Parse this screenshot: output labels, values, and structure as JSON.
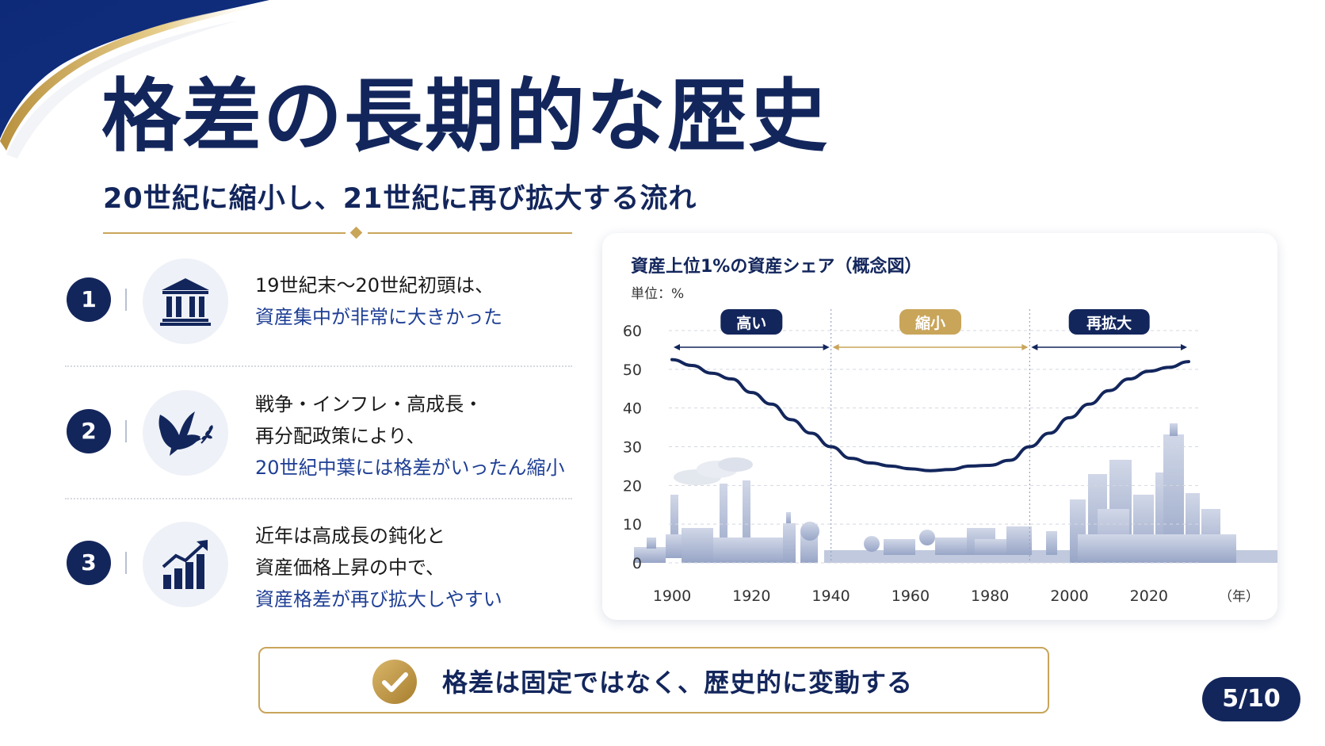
{
  "title": "格差の長期的な歴史",
  "subtitle": "20世紀に縮小し、21世紀に再び拡大する流れ",
  "points": [
    {
      "number": "1",
      "icon": "bank-icon",
      "line1": "19世紀末～20世紀初頭は、",
      "line2": "資産集中が非常に大きかった"
    },
    {
      "number": "2",
      "icon": "dove-icon",
      "line1": "戦争・インフレ・高成長・",
      "line2": "再分配政策により、",
      "line3": "20世紀中葉には格差がいったん縮小"
    },
    {
      "number": "3",
      "icon": "growth-chart-icon",
      "line1": "近年は高成長の鈍化と",
      "line2": "資産価格上昇の中で、",
      "line3": "資産格差が再び拡大しやすい"
    }
  ],
  "summary": {
    "text": "格差は固定ではなく、歴史的に変動する",
    "icon": "check-badge-icon"
  },
  "page_indicator": "5/10",
  "colors": {
    "navy": "#13265c",
    "gold": "#c9a55a",
    "blue_text": "#1f3f95"
  },
  "chart_data": {
    "type": "line",
    "title": "資産上位1%の資産シェア（概念図）",
    "unit_label": "単位：%",
    "xlabel": "（年）",
    "ylabel": "",
    "xlim": [
      1900,
      2030
    ],
    "ylim": [
      0,
      60
    ],
    "x_ticks": [
      1900,
      1920,
      1940,
      1960,
      1980,
      2000,
      2020
    ],
    "y_ticks": [
      0,
      10,
      20,
      30,
      40,
      50,
      60
    ],
    "grid": true,
    "series": [
      {
        "x": [
          1900,
          1905,
          1910,
          1915,
          1920,
          1925,
          1930,
          1935,
          1940,
          1945,
          1950,
          1955,
          1960,
          1965,
          1970,
          1975,
          1980,
          1985,
          1990,
          1995,
          2000,
          2005,
          2010,
          2015,
          2020,
          2025,
          2030
        ],
        "values": [
          52.5,
          51,
          49,
          47.5,
          44,
          41,
          37,
          33.5,
          30,
          27,
          25.8,
          25,
          24.3,
          23.8,
          24.1,
          25,
          25.2,
          26.5,
          30,
          33.5,
          37.5,
          41,
          44.5,
          47.5,
          49.5,
          50.5,
          52
        ]
      }
    ],
    "periods": [
      {
        "label": "高い",
        "start": 1900,
        "end": 1940
      },
      {
        "label": "縮小",
        "start": 1940,
        "end": 1990
      },
      {
        "label": "再拡大",
        "start": 1990,
        "end": 2030
      }
    ]
  }
}
